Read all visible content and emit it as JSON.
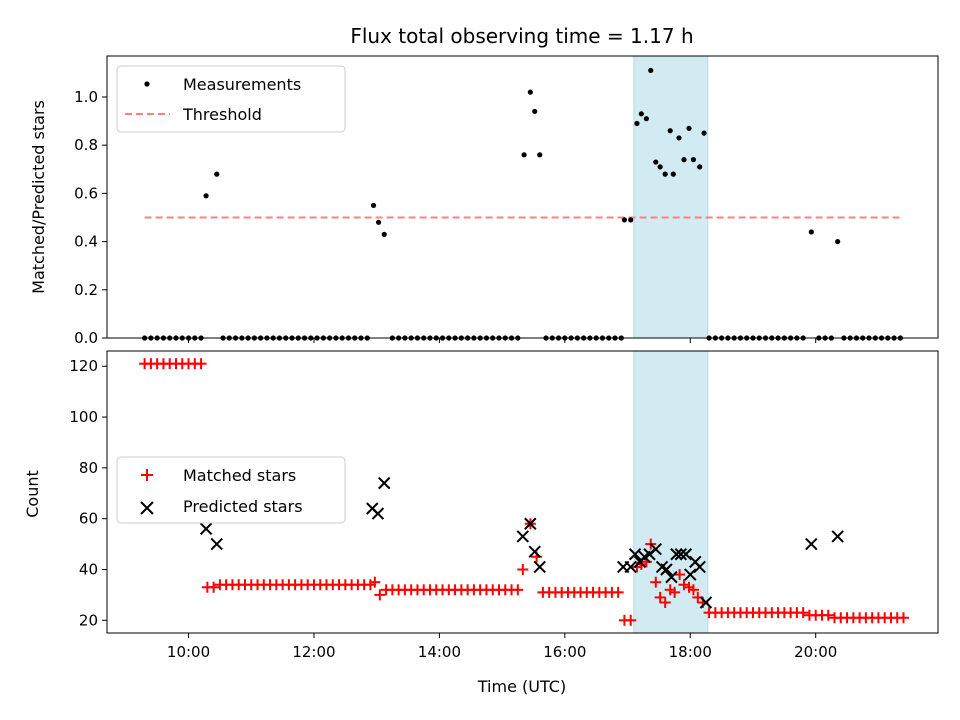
{
  "chart_data": {
    "type": "scatter",
    "title": "Flux total observing time = 1.17 h",
    "xlabel": "Time (UTC)",
    "x_ticks": [
      "10:00",
      "12:00",
      "14:00",
      "16:00",
      "18:00",
      "20:00"
    ],
    "x_tick_hours": [
      10,
      12,
      14,
      16,
      18,
      20
    ],
    "xlim_hours": [
      8.7,
      21.95
    ],
    "highlight_span_hours": [
      17.1,
      18.28
    ],
    "colors": {
      "span": "#add8e6",
      "matched": "#ff0000",
      "predicted": "#000000",
      "threshold": "#ff8080",
      "measurement": "#000000"
    },
    "top": {
      "ylabel": "Matched/Predicted stars",
      "ylim": [
        0,
        1.17
      ],
      "y_ticks": [
        "0.0",
        "0.2",
        "0.4",
        "0.6",
        "0.8",
        "1.0"
      ],
      "y_tick_values": [
        0,
        0.2,
        0.4,
        0.6,
        0.8,
        1.0
      ],
      "threshold": {
        "value": 0.5,
        "x_start": 9.3,
        "x_end": 21.4
      },
      "legend": [
        "Measurements",
        "Threshold"
      ],
      "measurements": [
        [
          9.3,
          0
        ],
        [
          9.4,
          0
        ],
        [
          9.5,
          0
        ],
        [
          9.6,
          0
        ],
        [
          9.7,
          0
        ],
        [
          9.8,
          0
        ],
        [
          9.9,
          0
        ],
        [
          10.0,
          0
        ],
        [
          10.1,
          0
        ],
        [
          10.2,
          0
        ],
        [
          10.28,
          0.59
        ],
        [
          10.45,
          0.68
        ],
        [
          10.55,
          0
        ],
        [
          10.65,
          0
        ],
        [
          10.75,
          0
        ],
        [
          10.85,
          0
        ],
        [
          10.95,
          0
        ],
        [
          11.05,
          0
        ],
        [
          11.15,
          0
        ],
        [
          11.25,
          0
        ],
        [
          11.35,
          0
        ],
        [
          11.45,
          0
        ],
        [
          11.55,
          0
        ],
        [
          11.65,
          0
        ],
        [
          11.75,
          0
        ],
        [
          11.85,
          0
        ],
        [
          11.95,
          0
        ],
        [
          12.05,
          0
        ],
        [
          12.15,
          0
        ],
        [
          12.25,
          0
        ],
        [
          12.35,
          0
        ],
        [
          12.45,
          0
        ],
        [
          12.55,
          0
        ],
        [
          12.65,
          0
        ],
        [
          12.75,
          0
        ],
        [
          12.85,
          0
        ],
        [
          12.95,
          0.55
        ],
        [
          13.03,
          0.48
        ],
        [
          13.12,
          0.43
        ],
        [
          13.25,
          0
        ],
        [
          13.35,
          0
        ],
        [
          13.45,
          0
        ],
        [
          13.55,
          0
        ],
        [
          13.65,
          0
        ],
        [
          13.75,
          0
        ],
        [
          13.85,
          0
        ],
        [
          13.95,
          0
        ],
        [
          14.05,
          0
        ],
        [
          14.15,
          0
        ],
        [
          14.25,
          0
        ],
        [
          14.35,
          0
        ],
        [
          14.45,
          0
        ],
        [
          14.55,
          0
        ],
        [
          14.65,
          0
        ],
        [
          14.75,
          0
        ],
        [
          14.85,
          0
        ],
        [
          14.95,
          0
        ],
        [
          15.05,
          0
        ],
        [
          15.15,
          0
        ],
        [
          15.25,
          0
        ],
        [
          15.35,
          0.76
        ],
        [
          15.45,
          1.02
        ],
        [
          15.52,
          0.94
        ],
        [
          15.6,
          0.76
        ],
        [
          15.7,
          0
        ],
        [
          15.8,
          0
        ],
        [
          15.9,
          0
        ],
        [
          16.0,
          0
        ],
        [
          16.1,
          0
        ],
        [
          16.2,
          0
        ],
        [
          16.3,
          0
        ],
        [
          16.4,
          0
        ],
        [
          16.5,
          0
        ],
        [
          16.6,
          0
        ],
        [
          16.7,
          0
        ],
        [
          16.8,
          0
        ],
        [
          16.9,
          0
        ],
        [
          16.95,
          0.49
        ],
        [
          17.05,
          0.49
        ],
        [
          17.15,
          0.89
        ],
        [
          17.22,
          0.93
        ],
        [
          17.3,
          0.91
        ],
        [
          17.37,
          1.11
        ],
        [
          17.45,
          0.73
        ],
        [
          17.52,
          0.71
        ],
        [
          17.6,
          0.68
        ],
        [
          17.68,
          0.86
        ],
        [
          17.73,
          0.68
        ],
        [
          17.82,
          0.83
        ],
        [
          17.9,
          0.74
        ],
        [
          17.98,
          0.87
        ],
        [
          18.05,
          0.74
        ],
        [
          18.15,
          0.71
        ],
        [
          18.22,
          0.85
        ],
        [
          18.3,
          0
        ],
        [
          18.4,
          0
        ],
        [
          18.5,
          0
        ],
        [
          18.6,
          0
        ],
        [
          18.7,
          0
        ],
        [
          18.8,
          0
        ],
        [
          18.9,
          0
        ],
        [
          19.0,
          0
        ],
        [
          19.1,
          0
        ],
        [
          19.2,
          0
        ],
        [
          19.3,
          0
        ],
        [
          19.4,
          0
        ],
        [
          19.5,
          0
        ],
        [
          19.6,
          0
        ],
        [
          19.7,
          0
        ],
        [
          19.8,
          0
        ],
        [
          19.93,
          0.44
        ],
        [
          20.05,
          0
        ],
        [
          20.15,
          0
        ],
        [
          20.25,
          0
        ],
        [
          20.35,
          0.4
        ],
        [
          20.45,
          0
        ],
        [
          20.55,
          0
        ],
        [
          20.65,
          0
        ],
        [
          20.75,
          0
        ],
        [
          20.85,
          0
        ],
        [
          20.95,
          0
        ],
        [
          21.05,
          0
        ],
        [
          21.15,
          0
        ],
        [
          21.25,
          0
        ],
        [
          21.35,
          0
        ]
      ]
    },
    "bottom": {
      "ylabel": "Count",
      "ylim": [
        15,
        126
      ],
      "y_ticks": [
        "20",
        "40",
        "60",
        "80",
        "100",
        "120"
      ],
      "y_tick_values": [
        20,
        40,
        60,
        80,
        100,
        120
      ],
      "legend": [
        "Matched stars",
        "Predicted stars"
      ],
      "matched": [
        [
          9.3,
          121
        ],
        [
          9.4,
          121
        ],
        [
          9.5,
          121
        ],
        [
          9.6,
          121
        ],
        [
          9.7,
          121
        ],
        [
          9.8,
          121
        ],
        [
          9.9,
          121
        ],
        [
          10.0,
          121
        ],
        [
          10.1,
          121
        ],
        [
          10.2,
          121
        ],
        [
          10.3,
          33
        ],
        [
          10.4,
          33
        ],
        [
          10.5,
          34
        ],
        [
          10.6,
          34
        ],
        [
          10.7,
          34
        ],
        [
          10.8,
          34
        ],
        [
          10.9,
          34
        ],
        [
          11.0,
          34
        ],
        [
          11.1,
          34
        ],
        [
          11.2,
          34
        ],
        [
          11.3,
          34
        ],
        [
          11.4,
          34
        ],
        [
          11.5,
          34
        ],
        [
          11.6,
          34
        ],
        [
          11.7,
          34
        ],
        [
          11.8,
          34
        ],
        [
          11.9,
          34
        ],
        [
          12.0,
          34
        ],
        [
          12.1,
          34
        ],
        [
          12.2,
          34
        ],
        [
          12.3,
          34
        ],
        [
          12.4,
          34
        ],
        [
          12.5,
          34
        ],
        [
          12.6,
          34
        ],
        [
          12.7,
          34
        ],
        [
          12.8,
          34
        ],
        [
          12.9,
          34
        ],
        [
          12.97,
          35
        ],
        [
          13.05,
          30
        ],
        [
          13.15,
          32
        ],
        [
          13.25,
          32
        ],
        [
          13.35,
          32
        ],
        [
          13.45,
          32
        ],
        [
          13.55,
          32
        ],
        [
          13.65,
          32
        ],
        [
          13.75,
          32
        ],
        [
          13.85,
          32
        ],
        [
          13.95,
          32
        ],
        [
          14.05,
          32
        ],
        [
          14.15,
          32
        ],
        [
          14.25,
          32
        ],
        [
          14.35,
          32
        ],
        [
          14.45,
          32
        ],
        [
          14.55,
          32
        ],
        [
          14.65,
          32
        ],
        [
          14.75,
          32
        ],
        [
          14.85,
          32
        ],
        [
          14.95,
          32
        ],
        [
          15.05,
          32
        ],
        [
          15.15,
          32
        ],
        [
          15.25,
          32
        ],
        [
          15.33,
          40
        ],
        [
          15.45,
          58
        ],
        [
          15.55,
          45
        ],
        [
          15.65,
          31
        ],
        [
          15.75,
          31
        ],
        [
          15.85,
          31
        ],
        [
          15.95,
          31
        ],
        [
          16.05,
          31
        ],
        [
          16.15,
          31
        ],
        [
          16.25,
          31
        ],
        [
          16.35,
          31
        ],
        [
          16.45,
          31
        ],
        [
          16.55,
          31
        ],
        [
          16.65,
          31
        ],
        [
          16.75,
          31
        ],
        [
          16.85,
          31
        ],
        [
          16.95,
          20
        ],
        [
          17.05,
          20
        ],
        [
          17.15,
          41
        ],
        [
          17.22,
          42
        ],
        [
          17.3,
          43
        ],
        [
          17.37,
          50
        ],
        [
          17.45,
          35
        ],
        [
          17.52,
          29
        ],
        [
          17.6,
          27
        ],
        [
          17.68,
          32
        ],
        [
          17.75,
          31
        ],
        [
          17.83,
          38
        ],
        [
          17.9,
          34
        ],
        [
          17.98,
          33
        ],
        [
          18.05,
          32
        ],
        [
          18.12,
          29
        ],
        [
          18.2,
          27
        ],
        [
          18.3,
          23
        ],
        [
          18.4,
          23
        ],
        [
          18.5,
          23
        ],
        [
          18.6,
          23
        ],
        [
          18.7,
          23
        ],
        [
          18.8,
          23
        ],
        [
          18.9,
          23
        ],
        [
          19.0,
          23
        ],
        [
          19.1,
          23
        ],
        [
          19.2,
          23
        ],
        [
          19.3,
          23
        ],
        [
          19.4,
          23
        ],
        [
          19.5,
          23
        ],
        [
          19.6,
          23
        ],
        [
          19.7,
          23
        ],
        [
          19.8,
          23
        ],
        [
          19.9,
          22
        ],
        [
          20.0,
          22
        ],
        [
          20.1,
          22
        ],
        [
          20.2,
          22
        ],
        [
          20.3,
          21
        ],
        [
          20.4,
          21
        ],
        [
          20.5,
          21
        ],
        [
          20.6,
          21
        ],
        [
          20.7,
          21
        ],
        [
          20.8,
          21
        ],
        [
          20.9,
          21
        ],
        [
          21.0,
          21
        ],
        [
          21.1,
          21
        ],
        [
          21.2,
          21
        ],
        [
          21.3,
          21
        ],
        [
          21.4,
          21
        ]
      ],
      "predicted": [
        [
          10.28,
          56
        ],
        [
          10.45,
          50
        ],
        [
          12.93,
          64
        ],
        [
          13.02,
          62
        ],
        [
          13.12,
          74
        ],
        [
          15.33,
          53
        ],
        [
          15.45,
          58
        ],
        [
          15.52,
          47
        ],
        [
          15.6,
          41
        ],
        [
          16.93,
          41
        ],
        [
          17.05,
          41
        ],
        [
          17.12,
          46
        ],
        [
          17.2,
          43
        ],
        [
          17.27,
          45
        ],
        [
          17.35,
          46
        ],
        [
          17.45,
          48
        ],
        [
          17.55,
          41
        ],
        [
          17.62,
          40
        ],
        [
          17.7,
          37
        ],
        [
          17.78,
          46
        ],
        [
          17.85,
          46
        ],
        [
          17.93,
          46
        ],
        [
          18.0,
          38
        ],
        [
          18.08,
          43
        ],
        [
          18.15,
          41
        ],
        [
          18.25,
          27
        ],
        [
          19.93,
          50
        ],
        [
          20.35,
          53
        ]
      ]
    }
  }
}
